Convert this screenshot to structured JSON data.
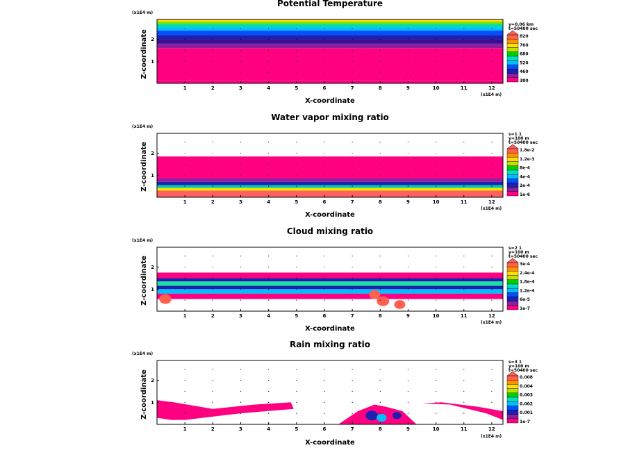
{
  "figure": {
    "axis_unit_x": "(x1E4 m)",
    "axis_unit_z": "(x1E4 m)"
  },
  "chart_data": [
    {
      "type": "heatmap",
      "title": "Potential Temperature",
      "xlabel": "X-coordinate",
      "ylabel": "Z-coordinate",
      "x_unit": "(x1E4 m)",
      "y_unit": "(x1E4 m)",
      "xlim": [
        0,
        12.4
      ],
      "ylim": [
        0,
        2.9
      ],
      "x_ticks": [
        "1",
        "2",
        "3",
        "4",
        "5",
        "6",
        "7",
        "8",
        "9",
        "10",
        "11",
        "12"
      ],
      "y_ticks": [
        "1",
        "2"
      ],
      "info": [
        "y=0.06 km",
        "t=50400 sec"
      ],
      "colorbar": {
        "labels": [
          "820",
          "760",
          "680",
          "520",
          "460",
          "380"
        ],
        "colors": [
          "#ff0080",
          "#8b1fa0",
          "#2020b0",
          "#0050ff",
          "#00bfff",
          "#00e0c0",
          "#00d000",
          "#c0e000",
          "#ffe000",
          "#ff9000",
          "#ff6050"
        ]
      },
      "layers": [
        {
          "z0": 0.0,
          "z1": 0.15,
          "color": "#ff0080"
        },
        {
          "z0": 0.15,
          "z1": 1.6,
          "color": "#ff0080"
        },
        {
          "z0": 1.6,
          "z1": 1.8,
          "color": "#8b1fa0"
        },
        {
          "z0": 1.8,
          "z1": 2.0,
          "color": "#3a1090"
        },
        {
          "z0": 2.0,
          "z1": 2.2,
          "color": "#2020b0"
        },
        {
          "z0": 2.2,
          "z1": 2.4,
          "color": "#0050ff"
        },
        {
          "z0": 2.4,
          "z1": 2.55,
          "color": "#00bfff"
        },
        {
          "z0": 2.55,
          "z1": 2.7,
          "color": "#00e0a0"
        },
        {
          "z0": 2.7,
          "z1": 2.8,
          "color": "#80e000"
        },
        {
          "z0": 2.8,
          "z1": 2.88,
          "color": "#ffe000"
        },
        {
          "z0": 2.88,
          "z1": 2.95,
          "color": "#ff9000"
        }
      ]
    },
    {
      "type": "heatmap",
      "title": "Water vapor mixing ratio",
      "xlabel": "X-coordinate",
      "ylabel": "Z-coordinate",
      "x_unit": "(x1E4 m)",
      "y_unit": "(x1E4 m)",
      "xlim": [
        0,
        12.4
      ],
      "ylim": [
        0,
        2.9
      ],
      "x_ticks": [
        "1",
        "2",
        "3",
        "4",
        "5",
        "6",
        "7",
        "8",
        "9",
        "10",
        "11",
        "12"
      ],
      "y_ticks": [
        "1",
        "2"
      ],
      "info": [
        "s=1 1",
        "y=100 m",
        "t=50400 sec"
      ],
      "colorbar": {
        "labels": [
          "1.8e-2",
          "1.2e-3",
          "8e-4",
          "4e-4",
          "2e-4",
          "1e-6"
        ],
        "colors": [
          "#ff0080",
          "#8b1fa0",
          "#2020b0",
          "#0050ff",
          "#00bfff",
          "#00e0c0",
          "#00d000",
          "#c0e000",
          "#ffe000",
          "#ff9000",
          "#ff6050"
        ]
      },
      "layers": [
        {
          "z0": 0.0,
          "z1": 0.3,
          "color": "#ff6060"
        },
        {
          "z0": 0.3,
          "z1": 0.42,
          "color": "#ffe000"
        },
        {
          "z0": 0.42,
          "z1": 0.55,
          "color": "#00d0a0"
        },
        {
          "z0": 0.55,
          "z1": 0.7,
          "color": "#2020b0"
        },
        {
          "z0": 0.7,
          "z1": 0.85,
          "color": "#8b1fa0"
        },
        {
          "z0": 0.85,
          "z1": 1.85,
          "color": "#ff0080"
        }
      ]
    },
    {
      "type": "heatmap",
      "title": "Cloud mixing ratio",
      "xlabel": "X-coordinate",
      "ylabel": "Z-coordinate",
      "x_unit": "(x1E4 m)",
      "y_unit": "(x1E4 m)",
      "xlim": [
        0,
        12.4
      ],
      "ylim": [
        0,
        2.9
      ],
      "x_ticks": [
        "1",
        "2",
        "3",
        "4",
        "5",
        "6",
        "7",
        "8",
        "9",
        "10",
        "11",
        "12"
      ],
      "y_ticks": [
        "1",
        "2"
      ],
      "info": [
        "s=2 1",
        "y=100 m",
        "t=50400 sec"
      ],
      "colorbar": {
        "labels": [
          "3e-4",
          "2.4e-4",
          "1.8e-4",
          "1.2e-4",
          "6e-5",
          "1e-7"
        ],
        "colors": [
          "#ff0080",
          "#8b1fa0",
          "#2020b0",
          "#0050ff",
          "#00bfff",
          "#00e0c0",
          "#00d000",
          "#c0e000",
          "#ffe000",
          "#ff9000",
          "#ff6050"
        ]
      },
      "layers": [
        {
          "z0": 0.55,
          "z1": 0.8,
          "color": "#ff0080"
        },
        {
          "z0": 0.8,
          "z1": 1.0,
          "color": "#00c0ff"
        },
        {
          "z0": 1.0,
          "z1": 1.15,
          "color": "#2020b0"
        },
        {
          "z0": 1.15,
          "z1": 1.35,
          "color": "#20e0a0"
        },
        {
          "z0": 1.35,
          "z1": 1.5,
          "color": "#2020b0"
        },
        {
          "z0": 1.5,
          "z1": 1.75,
          "color": "#ff0080"
        }
      ],
      "blobs": [
        {
          "x": 0.3,
          "z": 0.55,
          "r": 0.22,
          "color": "#ff6050"
        },
        {
          "x": 7.8,
          "z": 0.75,
          "r": 0.2,
          "color": "#ff6050"
        },
        {
          "x": 8.1,
          "z": 0.45,
          "r": 0.22,
          "color": "#ff6050"
        },
        {
          "x": 8.7,
          "z": 0.3,
          "r": 0.2,
          "color": "#ff6050"
        }
      ]
    },
    {
      "type": "heatmap",
      "title": "Rain mixing ratio",
      "xlabel": "X-coordinate",
      "ylabel": "Z-coordinate",
      "x_unit": "(x1E4 m)",
      "y_unit": "(x1E4 m)",
      "xlim": [
        0,
        12.4
      ],
      "ylim": [
        0,
        2.9
      ],
      "x_ticks": [
        "1",
        "2",
        "3",
        "4",
        "5",
        "6",
        "7",
        "8",
        "9",
        "10",
        "11",
        "12"
      ],
      "y_ticks": [
        "1",
        "2"
      ],
      "info": [
        "s=3 1",
        "y=100 m",
        "t=50400 sec"
      ],
      "colorbar": {
        "labels": [
          "0.008",
          "0.004",
          "0.003",
          "0.002",
          "0.001",
          "1e-7"
        ],
        "colors": [
          "#ff0080",
          "#8b1fa0",
          "#2020b0",
          "#0050ff",
          "#00bfff",
          "#00e0c0",
          "#00d000",
          "#c0e000",
          "#ffe000",
          "#ff9000",
          "#ff6050"
        ]
      },
      "regions": [
        {
          "x": [
            0.0,
            0.0,
            0.6,
            2.0,
            3.5,
            4.8,
            4.9,
            3.0,
            1.0,
            0.5
          ],
          "z": [
            0.3,
            1.1,
            1.0,
            0.7,
            0.9,
            1.0,
            0.7,
            0.5,
            0.2,
            0.2
          ],
          "color": "#ff0080"
        },
        {
          "x": [
            6.5,
            7.2,
            7.8,
            8.2,
            8.8,
            9.3,
            8.9,
            8.0,
            7.0
          ],
          "z": [
            0.0,
            0.6,
            0.9,
            0.8,
            0.6,
            0.0,
            0.0,
            0.0,
            0.0
          ],
          "color": "#ff0080"
        },
        {
          "x": [
            9.5,
            10.5,
            11.8,
            12.4,
            12.4,
            11.5,
            10.2
          ],
          "z": [
            0.95,
            0.9,
            0.5,
            0.2,
            0.6,
            0.8,
            1.0
          ],
          "color": "#ff0080"
        }
      ],
      "blobs": [
        {
          "x": 7.7,
          "z": 0.4,
          "r": 0.22,
          "color": "#2020b0"
        },
        {
          "x": 8.05,
          "z": 0.3,
          "r": 0.18,
          "color": "#00bfff"
        },
        {
          "x": 8.6,
          "z": 0.4,
          "r": 0.16,
          "color": "#2020b0"
        }
      ]
    }
  ]
}
